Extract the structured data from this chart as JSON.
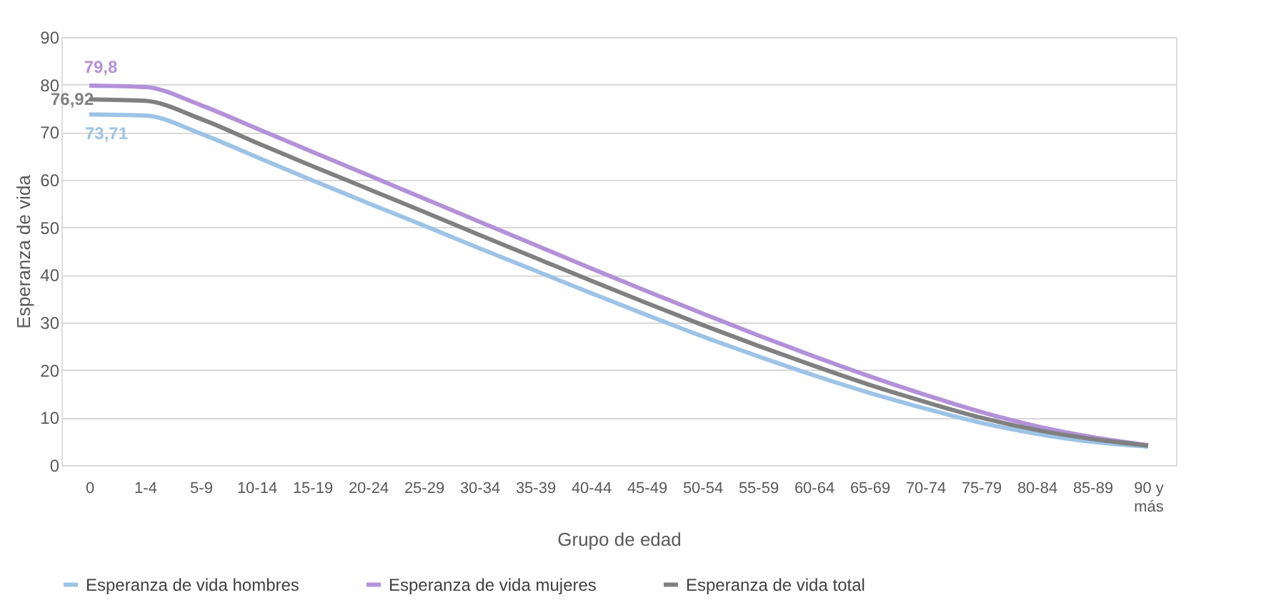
{
  "chart_data": {
    "type": "line",
    "xlabel": "Grupo de edad",
    "ylabel": "Esperanza de vida",
    "categories": [
      "0",
      "1-4",
      "5-9",
      "10-14",
      "15-19",
      "20-24",
      "25-29",
      "30-34",
      "35-39",
      "40-44",
      "45-49",
      "50-54",
      "55-59",
      "60-64",
      "65-69",
      "70-74",
      "75-79",
      "80-84",
      "85-89",
      "90 y más"
    ],
    "series": [
      {
        "name": "Esperanza de vida hombres",
        "color": "#9dc3e6",
        "values": [
          73.71,
          73.5,
          69.7,
          64.8,
          59.9,
          55.1,
          50.4,
          45.6,
          40.9,
          36.2,
          31.6,
          27.1,
          22.9,
          18.9,
          15.2,
          11.9,
          8.9,
          6.6,
          4.9,
          3.9
        ],
        "value_labels": [
          "73,71",
          null,
          null,
          null,
          null,
          null,
          null,
          null,
          null,
          null,
          null,
          null,
          null,
          null,
          null,
          null,
          null,
          null,
          null,
          null
        ]
      },
      {
        "name": "Esperanza de vida mujeres",
        "color": "#b391d9",
        "values": [
          79.8,
          79.5,
          75.7,
          70.8,
          65.9,
          61.0,
          56.1,
          51.2,
          46.3,
          41.4,
          36.6,
          31.9,
          27.3,
          22.9,
          18.7,
          14.8,
          11.2,
          8.2,
          5.9,
          4.2
        ],
        "value_labels": [
          "79,8",
          null,
          null,
          null,
          null,
          null,
          null,
          null,
          null,
          null,
          null,
          null,
          null,
          null,
          null,
          null,
          null,
          null,
          null,
          null
        ]
      },
      {
        "name": "Esperanza de vida total",
        "color": "#808080",
        "values": [
          76.92,
          76.6,
          72.8,
          67.8,
          62.9,
          58.1,
          53.3,
          48.4,
          43.6,
          38.8,
          34.1,
          29.5,
          25.1,
          20.9,
          16.9,
          13.3,
          10.0,
          7.4,
          5.5,
          4.1
        ],
        "value_labels": [
          "76,92",
          null,
          null,
          null,
          null,
          null,
          null,
          null,
          null,
          null,
          null,
          null,
          null,
          null,
          null,
          null,
          null,
          null,
          null,
          null
        ]
      }
    ],
    "ylim": [
      0,
      90
    ],
    "yticks": [
      0,
      10,
      20,
      30,
      40,
      50,
      60,
      70,
      80,
      90
    ],
    "grid": "y",
    "legend": "bottom",
    "marker": "none",
    "line_style": "solid"
  }
}
